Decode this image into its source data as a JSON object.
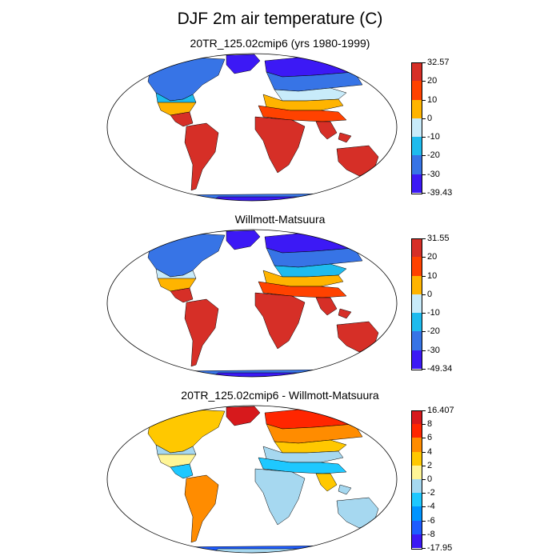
{
  "figure": {
    "title": "DJF 2m air temperature (C)"
  },
  "panels": [
    {
      "id": "model",
      "title": "20TR_125.02cmip6 (yrs 1980-1999)",
      "colorbar": {
        "labels": [
          "32.57",
          "20",
          "10",
          "0",
          "-10",
          "-20",
          "-30",
          "-39.43"
        ],
        "colors": [
          "#d62f27",
          "#ff4200",
          "#ffb400",
          "#c8ebfa",
          "#1ebbee",
          "#3774e6",
          "#3c19f5"
        ]
      }
    },
    {
      "id": "obs",
      "title": "Willmott-Matsuura",
      "colorbar": {
        "labels": [
          "31.55",
          "20",
          "10",
          "0",
          "-10",
          "-20",
          "-30",
          "-49.34"
        ],
        "colors": [
          "#d62f27",
          "#ff4200",
          "#ffb400",
          "#c8ebfa",
          "#1ebbee",
          "#3774e6",
          "#3c19f5"
        ]
      }
    },
    {
      "id": "diff",
      "title": "20TR_125.02cmip6 - Willmott-Matsuura",
      "colorbar": {
        "labels": [
          "16.407",
          "8",
          "6",
          "4",
          "2",
          "0",
          "-2",
          "-4",
          "-6",
          "-8",
          "-17.95"
        ],
        "colors": [
          "#d7191c",
          "#ff2600",
          "#ff8c00",
          "#ffc800",
          "#fff596",
          "#a6d8f0",
          "#1ec8ff",
          "#0094ff",
          "#1e5cff",
          "#3c19f5"
        ]
      }
    }
  ]
}
